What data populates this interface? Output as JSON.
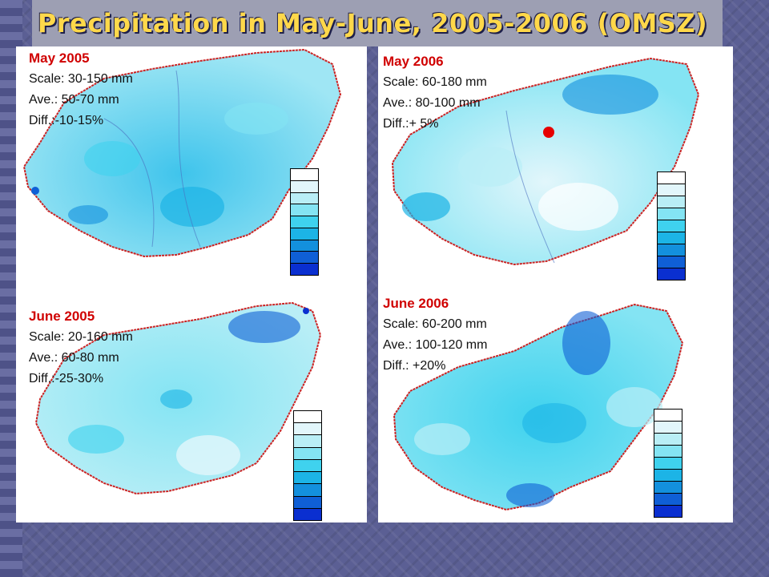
{
  "slide": {
    "title": "Precipitation in May-June, 2005-2006 (OMSZ)"
  },
  "colors": {
    "scale": [
      "#ffffff",
      "#e2f6fb",
      "#b9eef6",
      "#84e4f3",
      "#3fd2ee",
      "#1cb4e6",
      "#1390dd",
      "#0f5fd6",
      "#0a2fd0"
    ],
    "border": "#cc2222",
    "title": "#ffd84a"
  },
  "maps": [
    {
      "id": "may-2005",
      "heading": "May 2005",
      "scale": "Scale: 30-150 mm",
      "ave": "Ave.: 50-70 mm",
      "diff": "Diff.:-10-15%"
    },
    {
      "id": "may-2006",
      "heading": "May 2006",
      "scale": "Scale: 60-180 mm",
      "ave": "Ave.: 80-100 mm",
      "diff": "Diff.:+ 5%"
    },
    {
      "id": "june-2005",
      "heading": "June 2005",
      "scale": "Scale: 20-160 mm",
      "ave": "Ave.: 60-80 mm",
      "diff": "Diff.:-25-30%"
    },
    {
      "id": "june-2006",
      "heading": "June 2006",
      "scale": "Scale: 60-200 mm",
      "ave": "Ave.: 100-120 mm",
      "diff": "Diff.: +20%"
    }
  ]
}
